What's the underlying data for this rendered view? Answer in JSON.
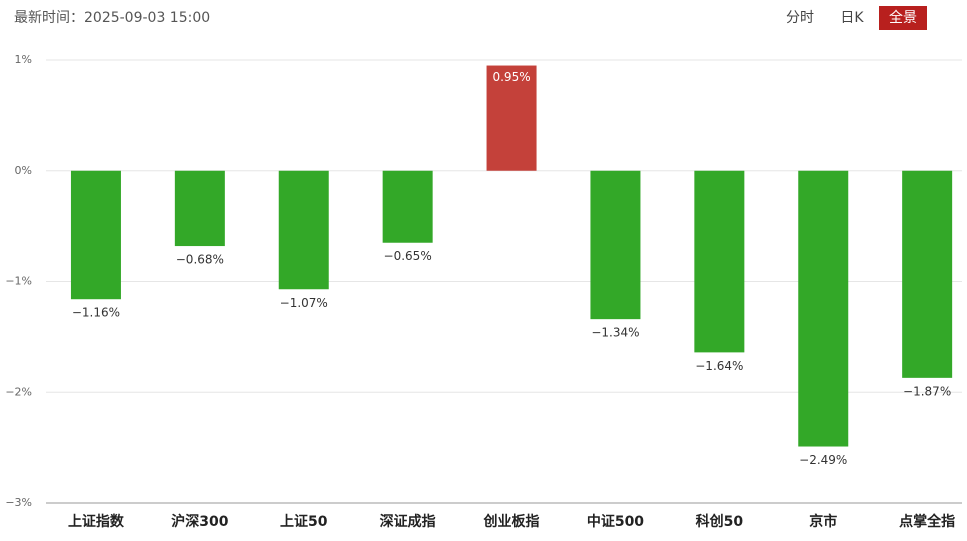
{
  "header": {
    "time_label": "最新时间：2025-09-03 15:00",
    "tabs": [
      "分时",
      "日K",
      "全景"
    ],
    "active_tab": 2
  },
  "chart_data": {
    "type": "bar",
    "categories": [
      "上证指数",
      "沪深300",
      "上证50",
      "深证成指",
      "创业板指",
      "中证500",
      "科创50",
      "京市",
      "点掌全指"
    ],
    "values": [
      -1.16,
      -0.68,
      -1.07,
      -0.65,
      0.95,
      -1.34,
      -1.64,
      -2.49,
      -1.87
    ],
    "value_labels": [
      "−1.16%",
      "−0.68%",
      "−1.07%",
      "−0.65%",
      "0.95%",
      "−1.34%",
      "−1.64%",
      "−2.49%",
      "−1.87%"
    ],
    "positive_color": "#c4413a",
    "negative_color": "#33a828",
    "ylim": [
      -3,
      1
    ],
    "yticks": [
      {
        "value": 1,
        "label": "1%"
      },
      {
        "value": 0,
        "label": "0%"
      },
      {
        "value": -1,
        "label": "−1%"
      },
      {
        "value": -2,
        "label": "−2%"
      },
      {
        "value": -3,
        "label": "−3%"
      }
    ],
    "grid": true
  }
}
